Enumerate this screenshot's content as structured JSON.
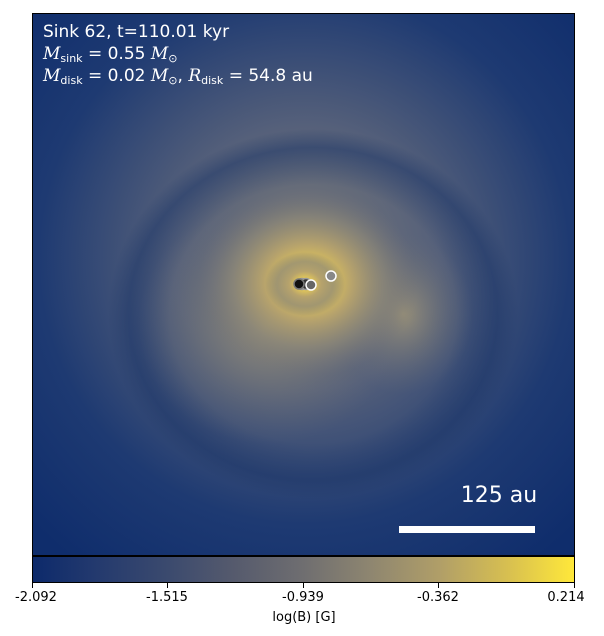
{
  "annotation": {
    "line1": "Sink 62, t=110.01 kyr",
    "m_sink_symbol": "M",
    "m_sink_sub": "sink",
    "m_sink_value": "= 0.55",
    "m_disk_symbol": "M",
    "m_disk_sub": "disk",
    "m_disk_value": "= 0.02",
    "r_disk_symbol": "R",
    "r_disk_sub": "disk",
    "r_disk_value": "= 54.8 au",
    "msun": "M",
    "msun_sub": "⊙"
  },
  "scale_bar": {
    "label": "125 au"
  },
  "colorbar": {
    "label": "log(B) [G]",
    "ticks": [
      "-2.092",
      "-1.515",
      "-0.939",
      "-0.362",
      "0.214"
    ],
    "colors": [
      "#0d2a6b",
      "#555a6d",
      "#8d8570",
      "#d8c050",
      "#ffe83a"
    ]
  },
  "sinks_count": 5
}
